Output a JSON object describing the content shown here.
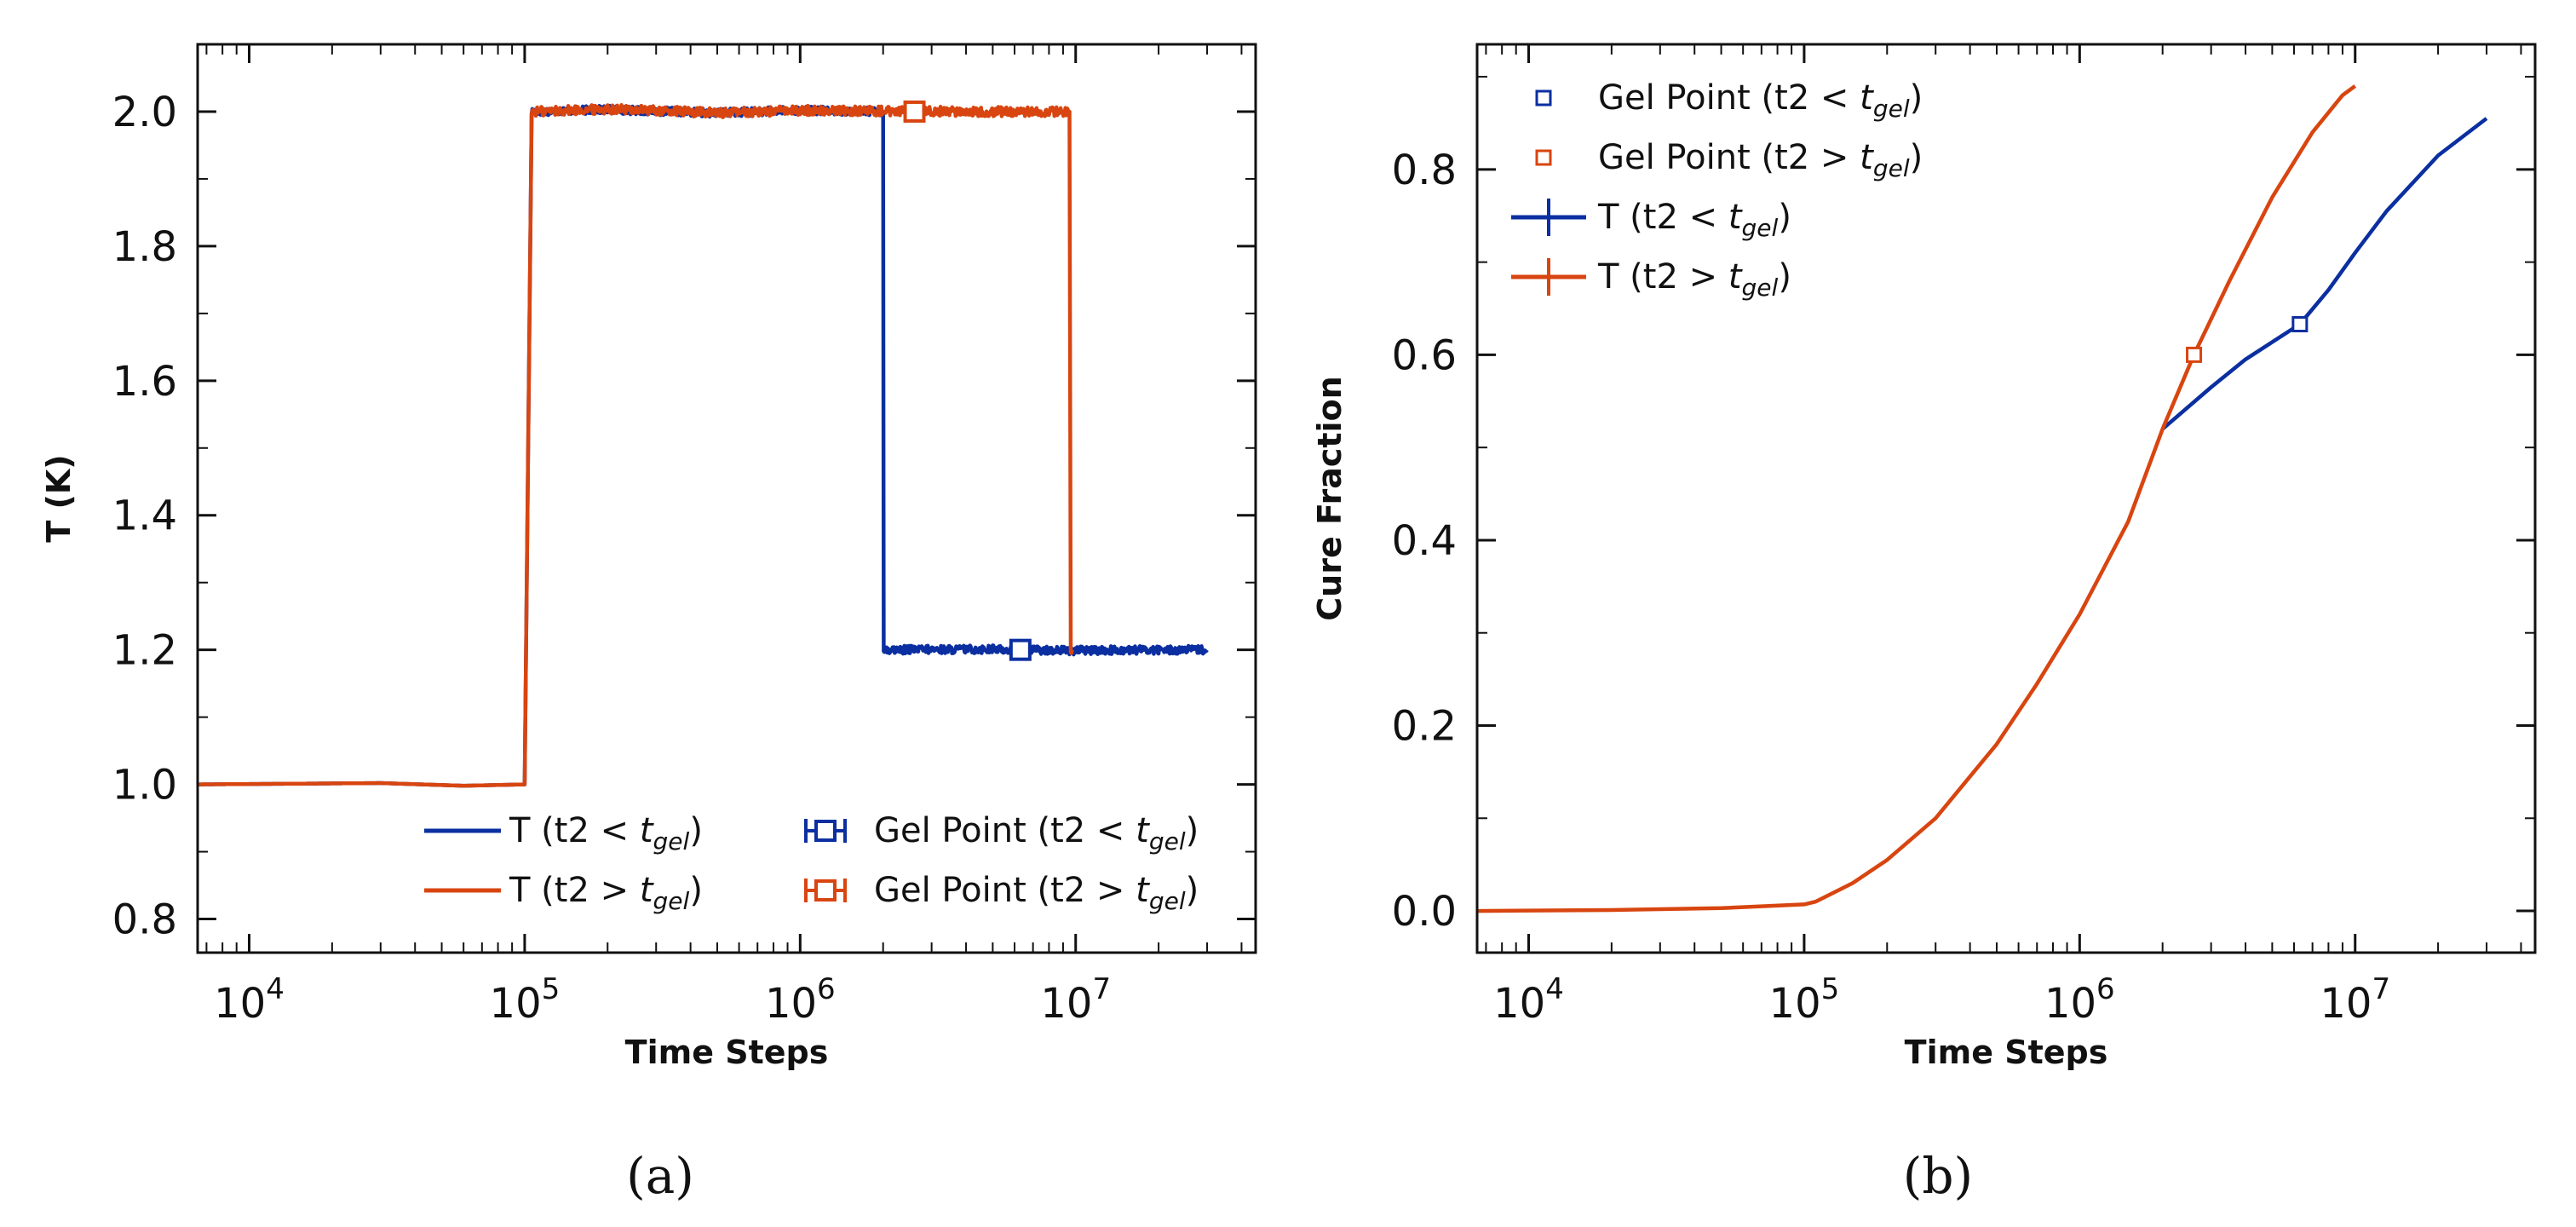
{
  "chart_data": [
    {
      "panel": "a",
      "type": "line",
      "caption": "(a)",
      "xlabel": "Time Steps",
      "ylabel": "T (K)",
      "xscale": "log",
      "xlim": [
        6500,
        45000000
      ],
      "ylim": [
        0.75,
        2.1
      ],
      "yticks": [
        0.8,
        1.0,
        1.2,
        1.4,
        1.6,
        1.8,
        2.0
      ],
      "ytick_labels": [
        "0.8",
        "1.0",
        "1.2",
        "1.4",
        "1.6",
        "1.8",
        "2.0"
      ],
      "xticks_exp": [
        4,
        5,
        6,
        7
      ],
      "xtick_base": "10",
      "legend_position": "lower-right",
      "series": [
        {
          "name": "T (t2 < t_gel)",
          "legend_label": "T (t2 < ",
          "legend_sub": "gel",
          "legend_close": ")",
          "color": "#0b2fa0",
          "x": [
            6500,
            30000,
            60000,
            100000,
            106000,
            200000,
            500000,
            1000000,
            1990000,
            2000000,
            2010000,
            5000000,
            10000000,
            20000000,
            30000000
          ],
          "y": [
            1.0,
            1.002,
            0.998,
            1.0,
            2.0,
            2.003,
            1.998,
            2.002,
            2.0,
            2.0,
            1.2,
            1.201,
            1.199,
            1.2,
            1.2
          ],
          "noise": 0.006
        },
        {
          "name": "T (t2 > t_gel)",
          "legend_label": "T (t2 > ",
          "legend_sub": "gel",
          "legend_close": ")",
          "color": "#d84510",
          "x": [
            6500,
            30000,
            60000,
            100000,
            106000,
            200000,
            500000,
            1000000,
            5000000,
            9500000,
            9600000,
            9700000
          ],
          "y": [
            1.0,
            1.002,
            0.998,
            1.0,
            2.0,
            2.004,
            1.998,
            2.002,
            2.0,
            2.0,
            1.2,
            1.2
          ],
          "noise": 0.007
        }
      ],
      "gel_points": [
        {
          "name": "Gel Point (t2 < t_gel)",
          "legend_label": "Gel Point (t2 < ",
          "legend_sub": "gel",
          "legend_close": ")",
          "x": 6300000,
          "y": 1.2,
          "color": "#0b2fa0"
        },
        {
          "name": "Gel Point (t2 > t_gel)",
          "legend_label": "Gel Point (t2 > ",
          "legend_sub": "gel",
          "legend_close": ")",
          "x": 2600000,
          "y": 2.0,
          "color": "#d84510"
        }
      ]
    },
    {
      "panel": "b",
      "type": "line",
      "caption": "(b)",
      "xlabel": "Time Steps",
      "ylabel": "Cure Fraction",
      "xscale": "log",
      "xlim": [
        6500,
        45000000
      ],
      "ylim": [
        -0.045,
        0.935
      ],
      "yticks": [
        0.0,
        0.2,
        0.4,
        0.6,
        0.8
      ],
      "ytick_labels": [
        "0.0",
        "0.2",
        "0.4",
        "0.6",
        "0.8"
      ],
      "xticks_exp": [
        4,
        5,
        6,
        7
      ],
      "xtick_base": "10",
      "legend_position": "upper-left",
      "series": [
        {
          "name": "T (t2 < t_gel)",
          "legend_label": "T (t2 < ",
          "legend_sub": "gel",
          "legend_close": ")",
          "color": "#0b2fa0",
          "x": [
            2000000,
            3000000,
            4000000,
            6300000,
            8000000,
            10000000,
            13000000,
            20000000,
            30000000
          ],
          "y": [
            0.52,
            0.565,
            0.595,
            0.633,
            0.67,
            0.71,
            0.755,
            0.815,
            0.855
          ]
        },
        {
          "name": "T (t2 > t_gel)",
          "legend_label": "T (t2 > ",
          "legend_sub": "gel",
          "legend_close": ")",
          "color": "#d84510",
          "x": [
            6500,
            20000,
            50000,
            100000,
            110000,
            150000,
            200000,
            300000,
            500000,
            700000,
            1000000,
            1500000,
            2000000,
            2600000,
            3500000,
            5000000,
            7000000,
            9000000,
            10000000
          ],
          "y": [
            0.0,
            0.001,
            0.003,
            0.007,
            0.01,
            0.03,
            0.055,
            0.1,
            0.18,
            0.245,
            0.32,
            0.42,
            0.52,
            0.6,
            0.68,
            0.77,
            0.84,
            0.88,
            0.89
          ]
        }
      ],
      "gel_points": [
        {
          "name": "Gel Point (t2 < t_gel)",
          "legend_label": "Gel Point (t2 < ",
          "legend_sub": "gel",
          "legend_close": ")",
          "x": 6300000,
          "y": 0.633,
          "color": "#0b2fa0"
        },
        {
          "name": "Gel Point (t2 > t_gel)",
          "legend_label": "Gel Point (t2 > ",
          "legend_sub": "gel",
          "legend_close": ")",
          "x": 2600000,
          "y": 0.6,
          "color": "#d84510"
        }
      ]
    }
  ]
}
